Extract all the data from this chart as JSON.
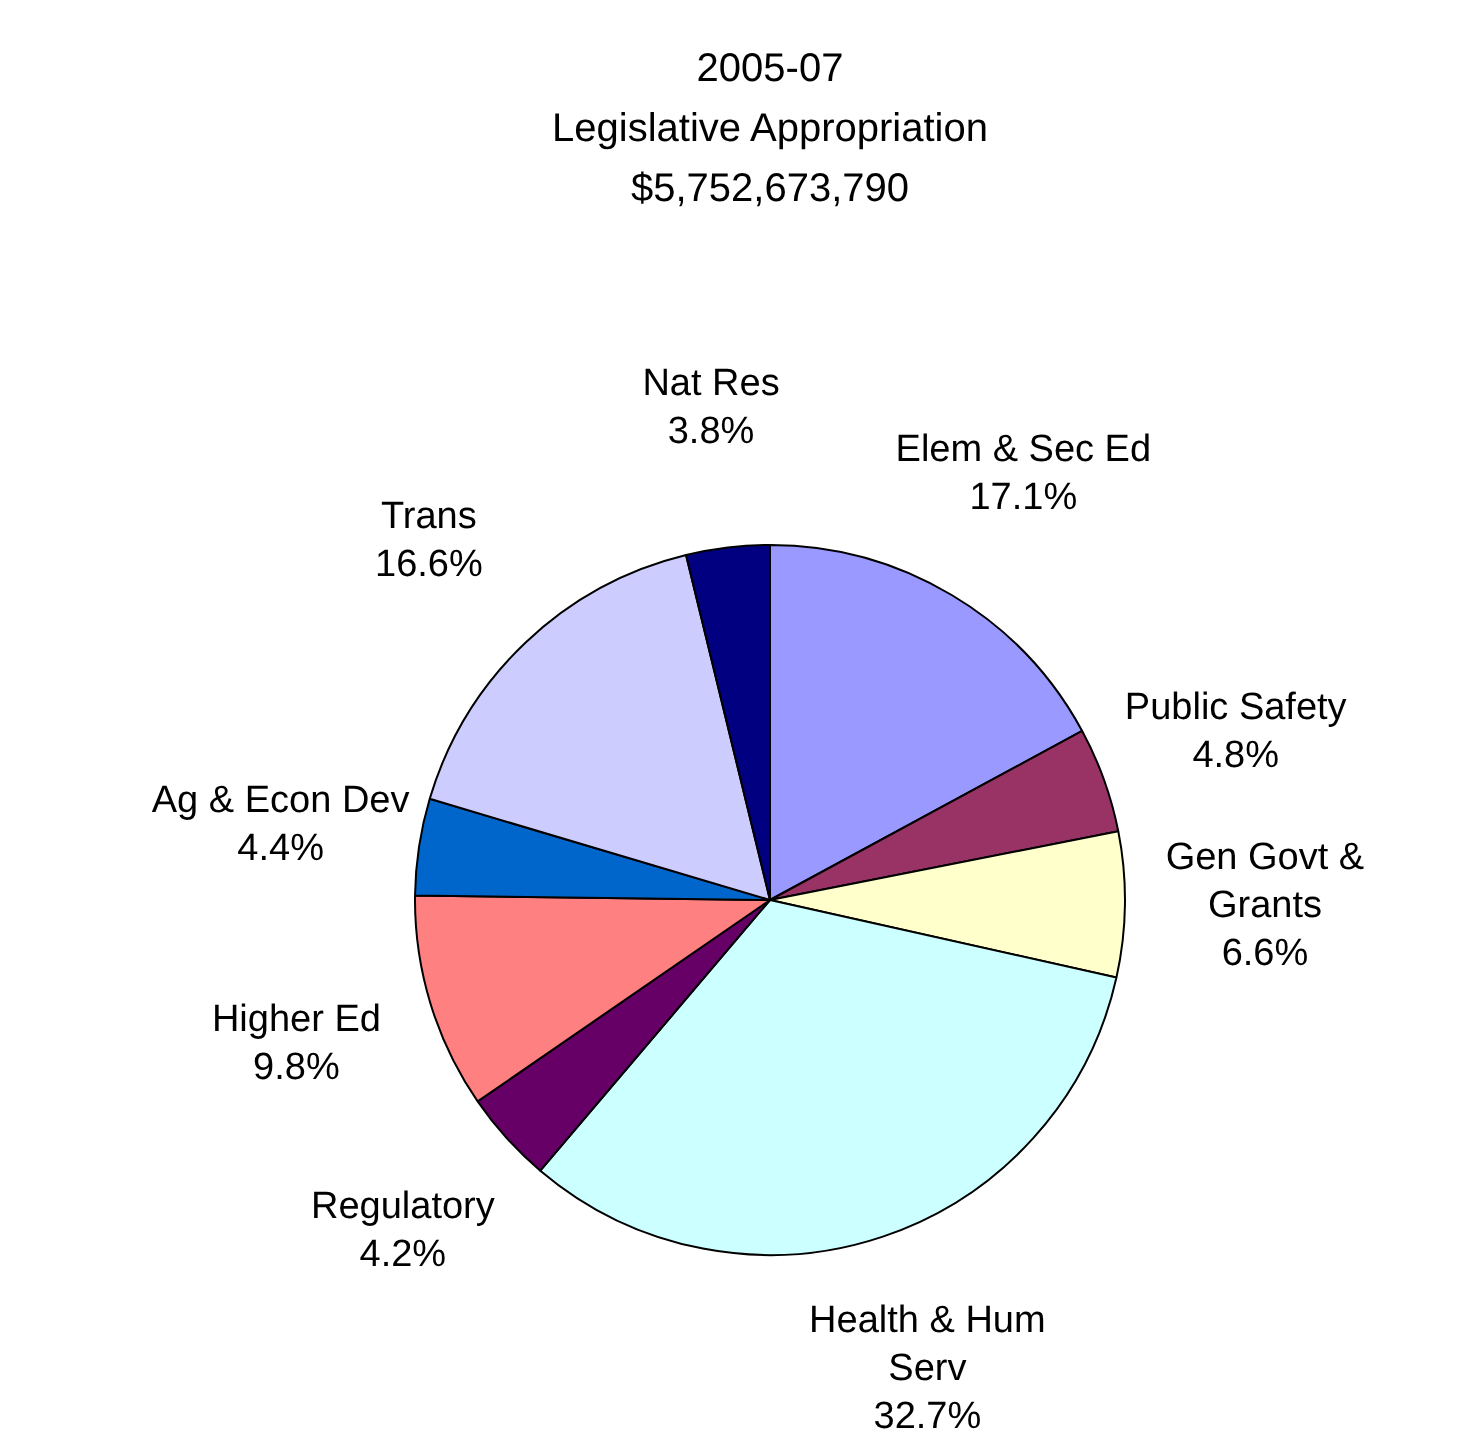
{
  "chart_data": {
    "type": "pie",
    "title": "2005-07\nLegislative Appropriation\n$5,752,673,790",
    "categories": [
      "Elem & Sec Ed",
      "Public Safety",
      "Gen Govt & Grants",
      "Health & Hum Serv",
      "Regulatory",
      "Higher Ed",
      "Ag & Econ Dev",
      "Trans",
      "Nat Res"
    ],
    "values": [
      17.1,
      4.8,
      6.6,
      32.7,
      4.2,
      9.8,
      4.4,
      16.6,
      3.8
    ],
    "value_labels": [
      "17.1%",
      "4.8%",
      "6.6%",
      "32.7%",
      "4.2%",
      "9.8%",
      "4.4%",
      "16.6%",
      "3.8%"
    ],
    "colors": [
      "#9999ff",
      "#993366",
      "#ffffcc",
      "#ccffff",
      "#660066",
      "#ff8080",
      "#0066cc",
      "#ccccff",
      "#000080"
    ],
    "legend": false
  }
}
